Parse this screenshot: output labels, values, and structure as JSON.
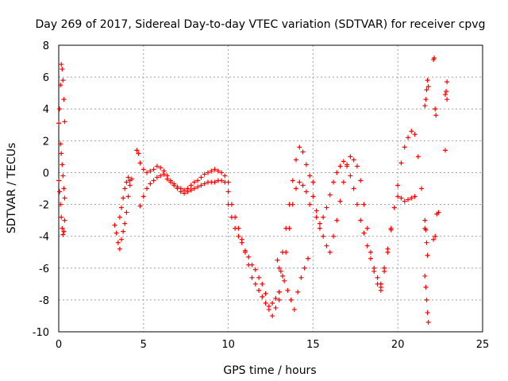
{
  "chart_data": {
    "type": "scatter",
    "title": "Day 269 of 2017, Sidereal Day-to-day VTEC variation (SDTVAR) for receiver cpvg",
    "xlabel": "GPS time / hours",
    "ylabel": "SDTVAR / TECUs",
    "xlim": [
      0,
      25
    ],
    "ylim": [
      -10,
      8
    ],
    "xticks": [
      "0",
      "5",
      "10",
      "15",
      "20",
      "25"
    ],
    "yticks": [
      "-10",
      "-8",
      "-6",
      "-4",
      "-2",
      "0",
      "2",
      "4",
      "6",
      "8"
    ],
    "grid": true,
    "marker": "+",
    "series": [
      {
        "name": "SDTVAR",
        "color": "#ff0000",
        "x": [
          0.0,
          0.05,
          0.1,
          0.15,
          0.2,
          0.25,
          0.3,
          0.35,
          0.0,
          0.05,
          0.1,
          0.15,
          0.2,
          0.25,
          0.3,
          0.35,
          0.1,
          0.15,
          0.2,
          0.25,
          0.3,
          0.35,
          3.3,
          3.4,
          3.5,
          3.6,
          3.7,
          3.8,
          3.9,
          4.0,
          4.1,
          4.2,
          4.3,
          3.6,
          3.7,
          3.8,
          3.9,
          4.0,
          4.1,
          4.2,
          4.6,
          4.7,
          4.8,
          5.0,
          5.2,
          5.4,
          5.6,
          5.8,
          6.0,
          6.2,
          6.4,
          6.6,
          6.8,
          7.0,
          7.2,
          7.4,
          7.6,
          7.8,
          8.0,
          8.2,
          8.4,
          8.6,
          8.8,
          9.0,
          9.2,
          9.4,
          9.6,
          9.8,
          10.0,
          4.8,
          5.0,
          5.2,
          5.4,
          5.6,
          5.8,
          6.0,
          6.2,
          6.4,
          6.6,
          6.8,
          7.0,
          7.2,
          7.4,
          7.6,
          7.8,
          8.0,
          8.2,
          8.4,
          8.6,
          8.8,
          9.0,
          9.2,
          9.4,
          9.6,
          9.8,
          10.0,
          10.2,
          10.4,
          10.6,
          10.8,
          11.0,
          11.2,
          11.4,
          11.6,
          11.8,
          12.0,
          12.2,
          12.4,
          12.6,
          12.8,
          13.0,
          10.0,
          10.2,
          10.4,
          10.6,
          10.8,
          11.0,
          11.2,
          11.4,
          11.6,
          11.8,
          12.0,
          12.2,
          12.4,
          12.6,
          12.8,
          13.0,
          13.0,
          13.2,
          13.4,
          13.6,
          13.8,
          14.0,
          14.2,
          14.4,
          14.6,
          14.8,
          15.0,
          13.0,
          13.2,
          13.4,
          13.6,
          13.8,
          14.0,
          14.2,
          14.4,
          14.6,
          14.8,
          12.9,
          13.1,
          13.3,
          13.5,
          13.7,
          13.9,
          14.1,
          14.3,
          14.5,
          14.7,
          15.0,
          15.2,
          15.4,
          15.6,
          15.8,
          16.0,
          16.2,
          16.4,
          16.6,
          16.8,
          17.0,
          17.2,
          17.4,
          17.6,
          17.8,
          18.0,
          18.2,
          18.4,
          18.6,
          18.8,
          19.0,
          15.2,
          15.4,
          15.6,
          15.8,
          16.0,
          16.2,
          16.4,
          16.6,
          16.8,
          17.0,
          17.2,
          17.4,
          17.6,
          17.8,
          18.0,
          18.2,
          18.4,
          18.6,
          18.8,
          19.0,
          19.0,
          19.2,
          19.4,
          19.6,
          19.8,
          20.0,
          20.2,
          20.4,
          20.6,
          20.8,
          21.0,
          21.2,
          21.4,
          21.6,
          19.0,
          19.2,
          19.4,
          19.6,
          19.8,
          20.0,
          20.2,
          20.4,
          20.6,
          20.8,
          21.0,
          21.6,
          21.65,
          21.7,
          21.75,
          21.8,
          21.6,
          21.65,
          21.7,
          21.75,
          21.8,
          21.6,
          21.65,
          21.7,
          21.75,
          22.1,
          22.15,
          22.2,
          22.25,
          22.1,
          22.2,
          22.3,
          22.8,
          22.85,
          22.9,
          22.8,
          22.9,
          22.4
        ],
        "y": [
          3.1,
          4.0,
          5.5,
          6.8,
          6.5,
          5.8,
          4.6,
          3.2,
          -0.5,
          -1.2,
          -2.0,
          -2.8,
          -3.5,
          -3.9,
          -3.7,
          -3.0,
          1.8,
          1.2,
          0.5,
          -0.2,
          -1.0,
          -1.6,
          -3.3,
          -3.8,
          -4.4,
          -4.8,
          -4.2,
          -3.7,
          -3.2,
          -2.5,
          -1.5,
          -0.8,
          -0.4,
          -2.8,
          -2.2,
          -1.6,
          -1.0,
          -0.6,
          -0.3,
          -0.5,
          1.4,
          1.2,
          0.6,
          0.2,
          0.0,
          0.1,
          0.2,
          0.4,
          0.3,
          0.1,
          -0.2,
          -0.5,
          -0.7,
          -0.9,
          -1.0,
          -1.1,
          -1.0,
          -0.8,
          -0.6,
          -0.5,
          -0.3,
          -0.1,
          0.0,
          0.1,
          0.2,
          0.1,
          0.0,
          -0.2,
          -0.6,
          -2.1,
          -1.5,
          -1.0,
          -0.7,
          -0.5,
          -0.3,
          -0.2,
          -0.1,
          -0.4,
          -0.6,
          -0.8,
          -1.0,
          -1.2,
          -1.3,
          -1.2,
          -1.1,
          -1.0,
          -0.9,
          -0.8,
          -0.7,
          -0.6,
          -0.6,
          -0.6,
          -0.5,
          -0.5,
          -0.6,
          -1.2,
          -2.0,
          -2.8,
          -3.5,
          -4.2,
          -5.0,
          -5.8,
          -6.6,
          -7.0,
          -7.4,
          -7.8,
          -8.2,
          -8.6,
          -8.2,
          -7.9,
          -7.5,
          -2.0,
          -2.8,
          -3.5,
          -4.0,
          -4.4,
          -4.9,
          -5.3,
          -5.8,
          -6.1,
          -6.6,
          -7.0,
          -7.6,
          -8.4,
          -9.0,
          -8.5,
          -8.0,
          -6.0,
          -5.0,
          -3.5,
          -2.0,
          -0.5,
          0.8,
          1.6,
          1.3,
          0.5,
          -0.2,
          -0.6,
          -7.5,
          -6.5,
          -5.0,
          -3.5,
          -2.0,
          -1.0,
          -0.6,
          -0.8,
          -1.2,
          -2.0,
          -5.5,
          -6.2,
          -6.8,
          -7.4,
          -8.0,
          -8.6,
          -7.5,
          -6.6,
          -6.0,
          -5.4,
          -1.5,
          -2.4,
          -3.2,
          -4.0,
          -4.6,
          -5.0,
          -4.0,
          -3.0,
          -1.8,
          -0.6,
          0.4,
          1.0,
          0.8,
          0.4,
          -0.5,
          -2.0,
          -3.5,
          -5.0,
          -6.2,
          -7.0,
          -7.4,
          -2.8,
          -3.5,
          -2.8,
          -2.2,
          -1.4,
          -0.6,
          0.0,
          0.4,
          0.7,
          0.5,
          -0.2,
          -1.0,
          -2.0,
          -3.0,
          -3.8,
          -4.6,
          -5.4,
          -6.0,
          -6.6,
          -7.0,
          -7.2,
          -6.2,
          -5.0,
          -3.6,
          -2.2,
          -0.8,
          0.6,
          1.6,
          2.2,
          2.6,
          2.4,
          1.0,
          -1.0,
          -3.5,
          -7.0,
          -6.0,
          -4.8,
          -3.5,
          -2.2,
          -1.5,
          -1.6,
          -1.8,
          -1.7,
          -1.6,
          -1.5,
          -6.5,
          -7.2,
          -8.0,
          -8.8,
          -9.4,
          4.2,
          4.6,
          5.2,
          5.8,
          5.4,
          -3.0,
          -3.6,
          -4.4,
          -5.2,
          7.1,
          7.2,
          4.0,
          3.6,
          -4.2,
          -4.0,
          -2.6,
          4.9,
          5.1,
          4.6,
          1.4,
          5.7,
          -2.5
        ]
      }
    ]
  }
}
